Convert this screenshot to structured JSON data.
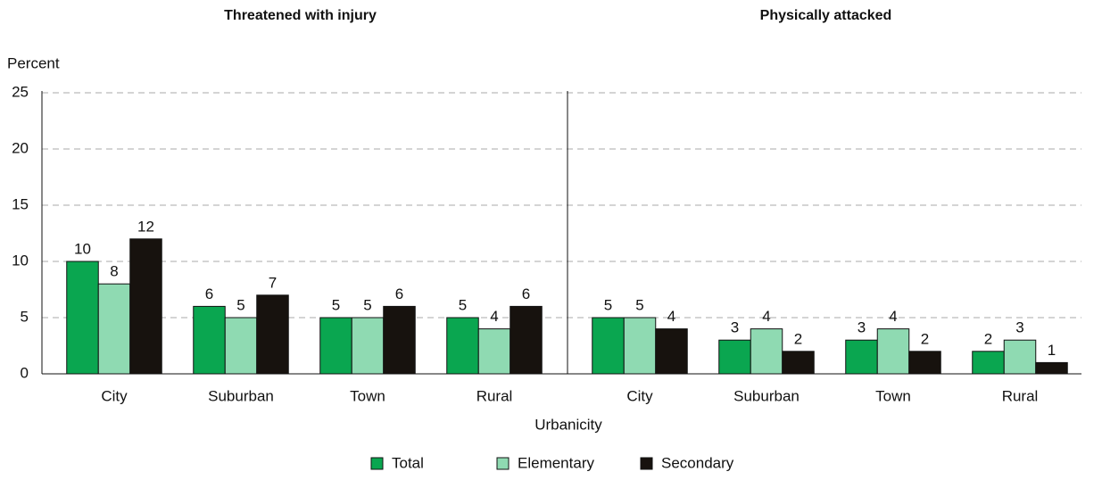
{
  "chart_data": {
    "type": "bar",
    "y_label": "Percent",
    "x_label": "Urbanicity",
    "ylim": [
      0,
      25
    ],
    "yticks": [
      0,
      5,
      10,
      15,
      20,
      25
    ],
    "grid": true,
    "legend": "bottom",
    "series": [
      {
        "name": "Total",
        "color": "#0aa650"
      },
      {
        "name": "Elementary",
        "color": "#8fdab2"
      },
      {
        "name": "Secondary",
        "color": "#17120e"
      }
    ],
    "panels": [
      {
        "title": "Threatened with injury",
        "categories": [
          "City",
          "Suburban",
          "Town",
          "Rural"
        ],
        "series": [
          {
            "values": [
              10,
              6,
              5,
              5
            ]
          },
          {
            "values": [
              8,
              5,
              5,
              4
            ]
          },
          {
            "values": [
              12,
              7,
              6,
              6
            ]
          }
        ]
      },
      {
        "title": "Physically attacked",
        "categories": [
          "City",
          "Suburban",
          "Town",
          "Rural"
        ],
        "series": [
          {
            "values": [
              5,
              3,
              3,
              2
            ]
          },
          {
            "values": [
              5,
              4,
              4,
              3
            ]
          },
          {
            "values": [
              4,
              2,
              2,
              1
            ]
          }
        ]
      }
    ]
  }
}
